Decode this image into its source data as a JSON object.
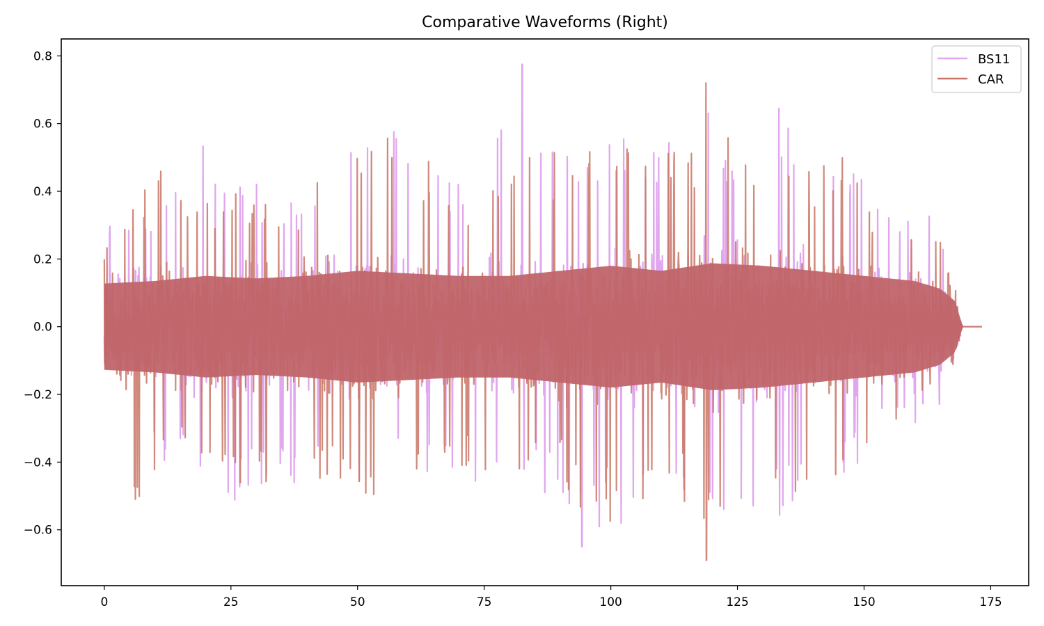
{
  "chart_data": {
    "type": "line",
    "title": "Comparative Waveforms (Right)",
    "xlabel": "",
    "ylabel": "",
    "xlim": [
      -8.5,
      182.5
    ],
    "ylim": [
      -0.765,
      0.85
    ],
    "grid": false,
    "legend_position": "upper right",
    "x_ticks": [
      0,
      25,
      50,
      75,
      100,
      125,
      150,
      175
    ],
    "y_ticks": [
      -0.6,
      -0.4,
      -0.2,
      0.0,
      0.2,
      0.4,
      0.6,
      0.8
    ],
    "y_tick_labels": [
      "−0.6",
      "−0.4",
      "−0.2",
      "0.0",
      "0.2",
      "0.4",
      "0.6",
      "0.8"
    ],
    "x_tick_labels": [
      "0",
      "25",
      "50",
      "75",
      "100",
      "125",
      "150",
      "175"
    ],
    "duration": 173.3,
    "signal_end": 169.5,
    "series": [
      {
        "name": "BS11",
        "color": "#e0a6ee",
        "alpha": 1.0,
        "envelope_x": [
          0,
          5,
          10,
          15,
          20,
          25,
          30,
          35,
          40,
          45,
          50,
          55,
          60,
          65,
          70,
          75,
          80,
          85,
          90,
          95,
          100,
          105,
          110,
          115,
          120,
          125,
          130,
          135,
          140,
          145,
          150,
          155,
          160,
          165,
          168,
          169.5
        ],
        "envelope_upper": [
          0.31,
          0.34,
          0.35,
          0.46,
          0.69,
          0.44,
          0.43,
          0.4,
          0.45,
          0.62,
          0.52,
          0.63,
          0.53,
          0.48,
          0.45,
          0.49,
          0.74,
          0.6,
          0.52,
          0.55,
          0.58,
          0.64,
          0.58,
          0.55,
          0.65,
          0.58,
          0.63,
          0.72,
          0.52,
          0.58,
          0.47,
          0.38,
          0.34,
          0.33,
          0.15,
          0.0
        ],
        "envelope_lower": [
          -0.42,
          -0.42,
          -0.43,
          -0.44,
          -0.44,
          -0.52,
          -0.5,
          -0.48,
          -0.46,
          -0.47,
          -0.5,
          -0.5,
          -0.45,
          -0.43,
          -0.45,
          -0.47,
          -0.5,
          -0.5,
          -0.52,
          -0.65,
          -0.61,
          -0.6,
          -0.5,
          -0.56,
          -0.6,
          -0.55,
          -0.52,
          -0.58,
          -0.55,
          -0.5,
          -0.4,
          -0.32,
          -0.35,
          -0.25,
          -0.12,
          0.0
        ],
        "peak_max": 0.775,
        "peak_max_x": 82.5,
        "peak_min": -0.65,
        "peak_min_x": 94.3
      },
      {
        "name": "CAR",
        "color": "#c87464",
        "alpha": 0.85,
        "envelope_x": [
          0,
          5,
          10,
          15,
          20,
          25,
          30,
          35,
          40,
          45,
          50,
          55,
          60,
          65,
          70,
          75,
          80,
          85,
          90,
          95,
          100,
          105,
          110,
          115,
          120,
          125,
          130,
          135,
          140,
          145,
          150,
          155,
          160,
          165,
          168,
          169.5
        ],
        "envelope_upper": [
          0.22,
          0.36,
          0.5,
          0.39,
          0.38,
          0.44,
          0.39,
          0.38,
          0.42,
          0.5,
          0.58,
          0.58,
          0.6,
          0.47,
          0.42,
          0.38,
          0.46,
          0.58,
          0.5,
          0.57,
          0.54,
          0.6,
          0.55,
          0.52,
          0.72,
          0.55,
          0.6,
          0.6,
          0.45,
          0.54,
          0.42,
          0.35,
          0.28,
          0.27,
          0.12,
          0.0
        ],
        "envelope_lower": [
          -0.32,
          -0.56,
          -0.42,
          -0.39,
          -0.43,
          -0.5,
          -0.47,
          -0.44,
          -0.43,
          -0.5,
          -0.52,
          -0.57,
          -0.44,
          -0.42,
          -0.45,
          -0.45,
          -0.48,
          -0.45,
          -0.47,
          -0.56,
          -0.6,
          -0.58,
          -0.48,
          -0.54,
          -0.69,
          -0.53,
          -0.5,
          -0.56,
          -0.48,
          -0.47,
          -0.43,
          -0.33,
          -0.3,
          -0.22,
          -0.1,
          0.0
        ],
        "peak_max": 0.72,
        "peak_max_x": 118.8,
        "peak_min": -0.69,
        "peak_min_x": 118.9
      }
    ],
    "rms_envelope_x": [
      0,
      10,
      20,
      30,
      40,
      50,
      60,
      70,
      80,
      90,
      100,
      110,
      120,
      130,
      140,
      150,
      160,
      165,
      168,
      169.5
    ],
    "rms_envelope": [
      0.085,
      0.09,
      0.1,
      0.095,
      0.1,
      0.11,
      0.105,
      0.1,
      0.1,
      0.11,
      0.12,
      0.11,
      0.125,
      0.12,
      0.11,
      0.1,
      0.09,
      0.075,
      0.05,
      0.0
    ]
  },
  "legend": {
    "items": [
      {
        "label": "BS11",
        "color": "#e0a6ee"
      },
      {
        "label": "CAR",
        "color": "#c87464"
      }
    ]
  }
}
